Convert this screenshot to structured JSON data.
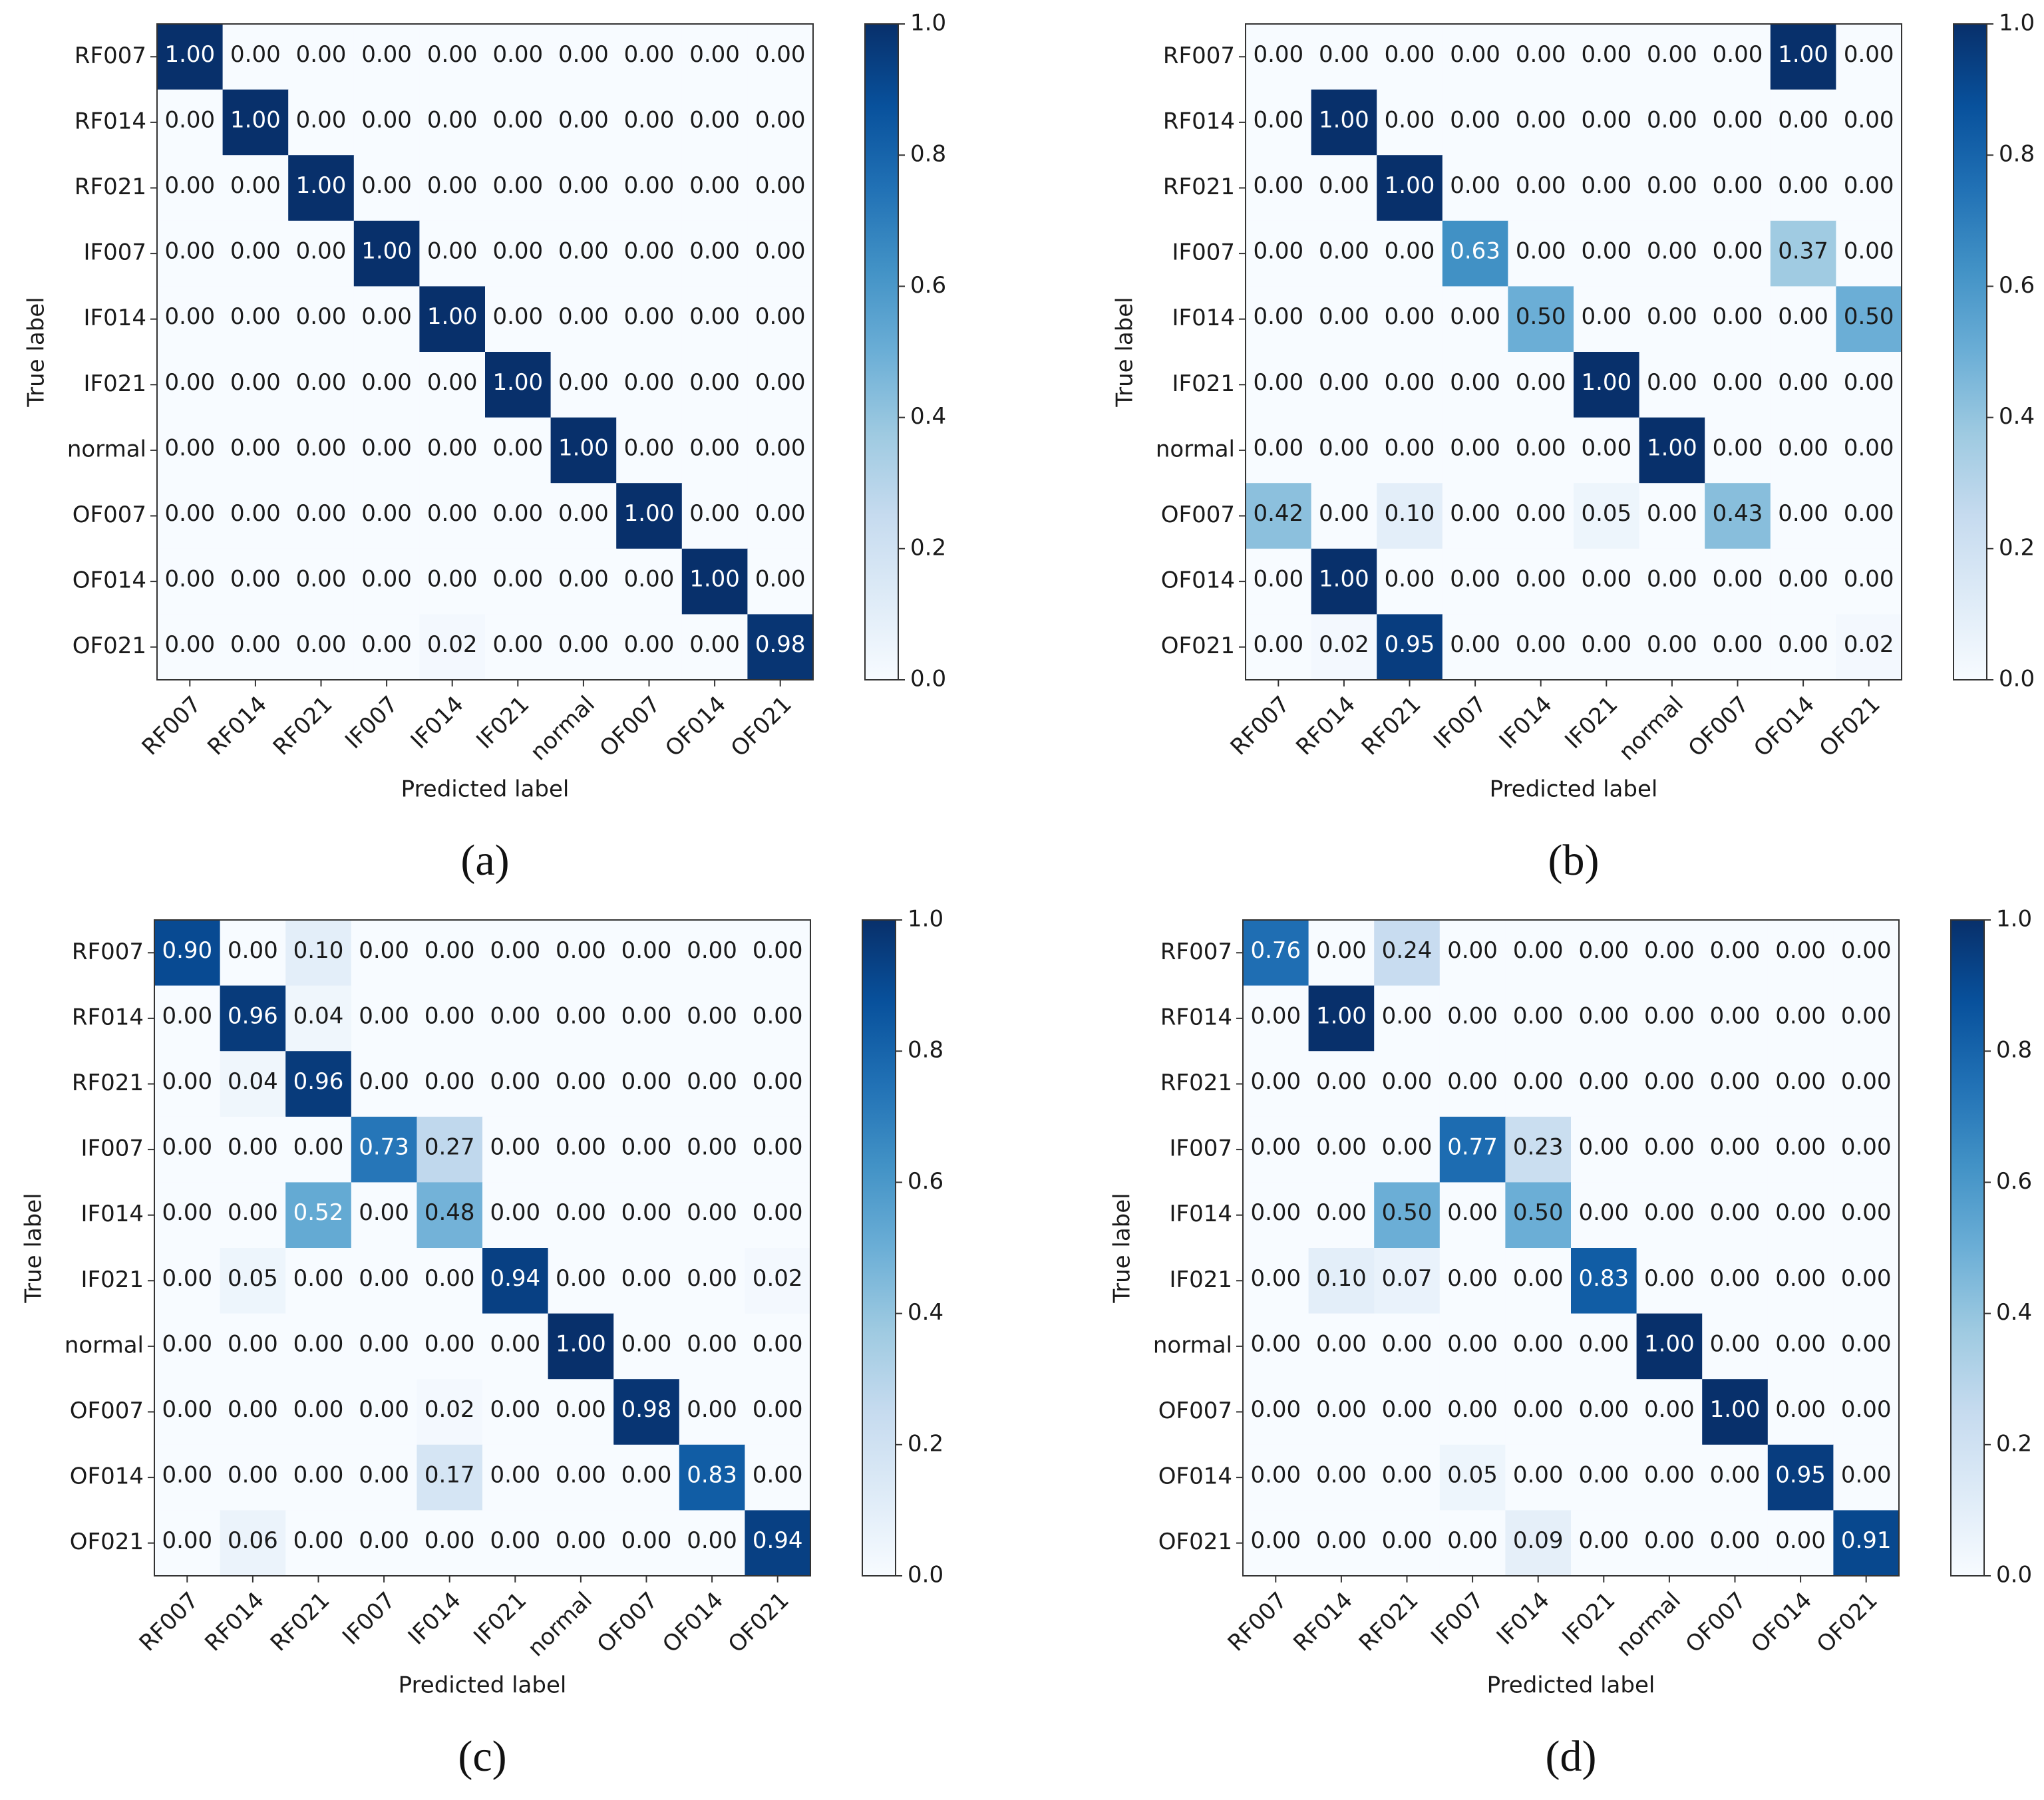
{
  "chart_data": [
    {
      "type": "heatmap",
      "caption": "(a)",
      "xlabel": "Predicted label",
      "ylabel": "True label",
      "labels": [
        "RF007",
        "RF014",
        "RF021",
        "IF007",
        "IF014",
        "IF021",
        "normal",
        "OF007",
        "OF014",
        "OF021"
      ],
      "colorbar": {
        "min": 0.0,
        "max": 1.0,
        "ticks": [
          "0.0",
          "0.2",
          "0.4",
          "0.6",
          "0.8",
          "1.0"
        ]
      },
      "matrix": [
        [
          1.0,
          0.0,
          0.0,
          0.0,
          0.0,
          0.0,
          0.0,
          0.0,
          0.0,
          0.0
        ],
        [
          0.0,
          1.0,
          0.0,
          0.0,
          0.0,
          0.0,
          0.0,
          0.0,
          0.0,
          0.0
        ],
        [
          0.0,
          0.0,
          1.0,
          0.0,
          0.0,
          0.0,
          0.0,
          0.0,
          0.0,
          0.0
        ],
        [
          0.0,
          0.0,
          0.0,
          1.0,
          0.0,
          0.0,
          0.0,
          0.0,
          0.0,
          0.0
        ],
        [
          0.0,
          0.0,
          0.0,
          0.0,
          1.0,
          0.0,
          0.0,
          0.0,
          0.0,
          0.0
        ],
        [
          0.0,
          0.0,
          0.0,
          0.0,
          0.0,
          1.0,
          0.0,
          0.0,
          0.0,
          0.0
        ],
        [
          0.0,
          0.0,
          0.0,
          0.0,
          0.0,
          0.0,
          1.0,
          0.0,
          0.0,
          0.0
        ],
        [
          0.0,
          0.0,
          0.0,
          0.0,
          0.0,
          0.0,
          0.0,
          1.0,
          0.0,
          0.0
        ],
        [
          0.0,
          0.0,
          0.0,
          0.0,
          0.0,
          0.0,
          0.0,
          0.0,
          1.0,
          0.0
        ],
        [
          0.0,
          0.0,
          0.0,
          0.0,
          0.02,
          0.0,
          0.0,
          0.0,
          0.0,
          0.98
        ]
      ]
    },
    {
      "type": "heatmap",
      "caption": "(b)",
      "xlabel": "Predicted label",
      "ylabel": "True label",
      "labels": [
        "RF007",
        "RF014",
        "RF021",
        "IF007",
        "IF014",
        "IF021",
        "normal",
        "OF007",
        "OF014",
        "OF021"
      ],
      "colorbar": {
        "min": 0.0,
        "max": 1.0,
        "ticks": [
          "0.0",
          "0.2",
          "0.4",
          "0.6",
          "0.8",
          "1.0"
        ]
      },
      "matrix": [
        [
          0.0,
          0.0,
          0.0,
          0.0,
          0.0,
          0.0,
          0.0,
          0.0,
          1.0,
          0.0
        ],
        [
          0.0,
          1.0,
          0.0,
          0.0,
          0.0,
          0.0,
          0.0,
          0.0,
          0.0,
          0.0
        ],
        [
          0.0,
          0.0,
          1.0,
          0.0,
          0.0,
          0.0,
          0.0,
          0.0,
          0.0,
          0.0
        ],
        [
          0.0,
          0.0,
          0.0,
          0.63,
          0.0,
          0.0,
          0.0,
          0.0,
          0.37,
          0.0
        ],
        [
          0.0,
          0.0,
          0.0,
          0.0,
          0.5,
          0.0,
          0.0,
          0.0,
          0.0,
          0.5
        ],
        [
          0.0,
          0.0,
          0.0,
          0.0,
          0.0,
          1.0,
          0.0,
          0.0,
          0.0,
          0.0
        ],
        [
          0.0,
          0.0,
          0.0,
          0.0,
          0.0,
          0.0,
          1.0,
          0.0,
          0.0,
          0.0
        ],
        [
          0.42,
          0.0,
          0.1,
          0.0,
          0.0,
          0.05,
          0.0,
          0.43,
          0.0,
          0.0
        ],
        [
          0.0,
          1.0,
          0.0,
          0.0,
          0.0,
          0.0,
          0.0,
          0.0,
          0.0,
          0.0
        ],
        [
          0.0,
          0.02,
          0.95,
          0.0,
          0.0,
          0.0,
          0.0,
          0.0,
          0.0,
          0.02
        ]
      ]
    },
    {
      "type": "heatmap",
      "caption": "(c)",
      "xlabel": "Predicted label",
      "ylabel": "True label",
      "labels": [
        "RF007",
        "RF014",
        "RF021",
        "IF007",
        "IF014",
        "IF021",
        "normal",
        "OF007",
        "OF014",
        "OF021"
      ],
      "colorbar": {
        "min": 0.0,
        "max": 1.0,
        "ticks": [
          "0.0",
          "0.2",
          "0.4",
          "0.6",
          "0.8",
          "1.0"
        ]
      },
      "matrix": [
        [
          0.9,
          0.0,
          0.1,
          0.0,
          0.0,
          0.0,
          0.0,
          0.0,
          0.0,
          0.0
        ],
        [
          0.0,
          0.96,
          0.04,
          0.0,
          0.0,
          0.0,
          0.0,
          0.0,
          0.0,
          0.0
        ],
        [
          0.0,
          0.04,
          0.96,
          0.0,
          0.0,
          0.0,
          0.0,
          0.0,
          0.0,
          0.0
        ],
        [
          0.0,
          0.0,
          0.0,
          0.73,
          0.27,
          0.0,
          0.0,
          0.0,
          0.0,
          0.0
        ],
        [
          0.0,
          0.0,
          0.52,
          0.0,
          0.48,
          0.0,
          0.0,
          0.0,
          0.0,
          0.0
        ],
        [
          0.0,
          0.05,
          0.0,
          0.0,
          0.0,
          0.94,
          0.0,
          0.0,
          0.0,
          0.02
        ],
        [
          0.0,
          0.0,
          0.0,
          0.0,
          0.0,
          0.0,
          1.0,
          0.0,
          0.0,
          0.0
        ],
        [
          0.0,
          0.0,
          0.0,
          0.0,
          0.02,
          0.0,
          0.0,
          0.98,
          0.0,
          0.0
        ],
        [
          0.0,
          0.0,
          0.0,
          0.0,
          0.17,
          0.0,
          0.0,
          0.0,
          0.83,
          0.0
        ],
        [
          0.0,
          0.06,
          0.0,
          0.0,
          0.0,
          0.0,
          0.0,
          0.0,
          0.0,
          0.94
        ]
      ]
    },
    {
      "type": "heatmap",
      "caption": "(d)",
      "xlabel": "Predicted label",
      "ylabel": "True label",
      "labels": [
        "RF007",
        "RF014",
        "RF021",
        "IF007",
        "IF014",
        "IF021",
        "normal",
        "OF007",
        "OF014",
        "OF021"
      ],
      "colorbar": {
        "min": 0.0,
        "max": 1.0,
        "ticks": [
          "0.0",
          "0.2",
          "0.4",
          "0.6",
          "0.8",
          "1.0"
        ]
      },
      "matrix": [
        [
          0.76,
          0.0,
          0.24,
          0.0,
          0.0,
          0.0,
          0.0,
          0.0,
          0.0,
          0.0
        ],
        [
          0.0,
          1.0,
          0.0,
          0.0,
          0.0,
          0.0,
          0.0,
          0.0,
          0.0,
          0.0
        ],
        [
          0.0,
          0.0,
          0.0,
          0.0,
          0.0,
          0.0,
          0.0,
          0.0,
          0.0,
          0.0
        ],
        [
          0.0,
          0.0,
          0.0,
          0.77,
          0.23,
          0.0,
          0.0,
          0.0,
          0.0,
          0.0
        ],
        [
          0.0,
          0.0,
          0.5,
          0.0,
          0.5,
          0.0,
          0.0,
          0.0,
          0.0,
          0.0
        ],
        [
          0.0,
          0.1,
          0.07,
          0.0,
          0.0,
          0.83,
          0.0,
          0.0,
          0.0,
          0.0
        ],
        [
          0.0,
          0.0,
          0.0,
          0.0,
          0.0,
          0.0,
          1.0,
          0.0,
          0.0,
          0.0
        ],
        [
          0.0,
          0.0,
          0.0,
          0.0,
          0.0,
          0.0,
          0.0,
          1.0,
          0.0,
          0.0
        ],
        [
          0.0,
          0.0,
          0.0,
          0.05,
          0.0,
          0.0,
          0.0,
          0.0,
          0.95,
          0.0
        ],
        [
          0.0,
          0.0,
          0.0,
          0.0,
          0.09,
          0.0,
          0.0,
          0.0,
          0.0,
          0.91
        ]
      ]
    }
  ]
}
